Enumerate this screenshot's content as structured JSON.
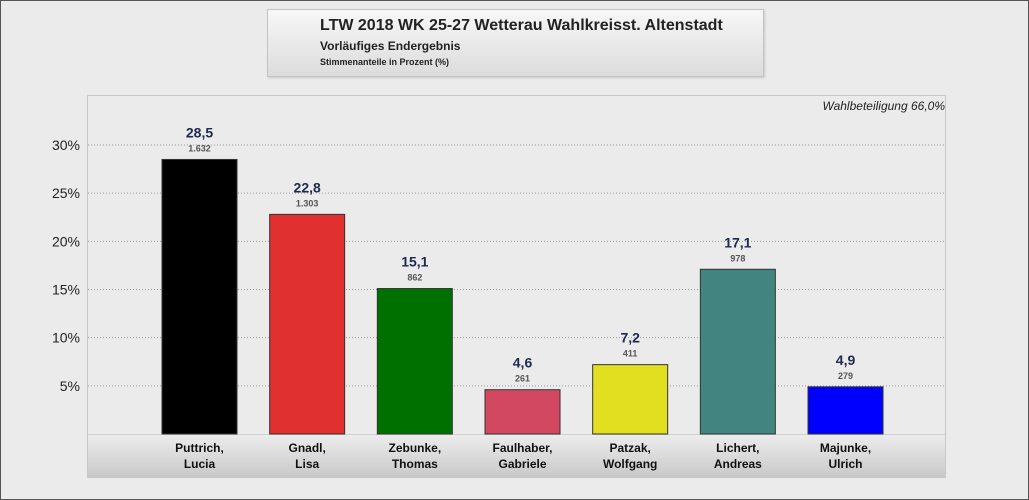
{
  "header": {
    "title": "LTW 2018 WK 25-27 Wetterau Wahlkreisst. Altenstadt",
    "subtitle": "Vorläufiges Endergebnis",
    "unit_note": "Stimmenanteile in Prozent (%)"
  },
  "turnout_label": "Wahlbeteiligung 66,0%",
  "chart_data": {
    "type": "bar",
    "categories": [
      [
        "Puttrich,",
        "Lucia"
      ],
      [
        "Gnadl,",
        "Lisa"
      ],
      [
        "Zebunke,",
        "Thomas"
      ],
      [
        "Faulhaber,",
        "Gabriele"
      ],
      [
        "Patzak,",
        "Wolfgang"
      ],
      [
        "Lichert,",
        "Andreas"
      ],
      [
        "Majunke,",
        "Ulrich"
      ]
    ],
    "values": [
      28.5,
      22.8,
      15.1,
      4.6,
      7.2,
      17.1,
      4.9
    ],
    "value_labels": [
      "28,5",
      "22,8",
      "15,1",
      "4,6",
      "7,2",
      "17,1",
      "4,9"
    ],
    "votes": [
      "1.632",
      "1.303",
      "862",
      "261",
      "411",
      "978",
      "279"
    ],
    "colors": [
      "#000000",
      "#e03030",
      "#007000",
      "#d14860",
      "#e2df20",
      "#428580",
      "#0000ff"
    ],
    "yticks": [
      5,
      10,
      15,
      20,
      25,
      30
    ],
    "ytick_labels": [
      "5%",
      "10%",
      "15%",
      "20%",
      "25%",
      "30%"
    ],
    "ylim": [
      0,
      30
    ],
    "grid": true,
    "legend": "none"
  }
}
